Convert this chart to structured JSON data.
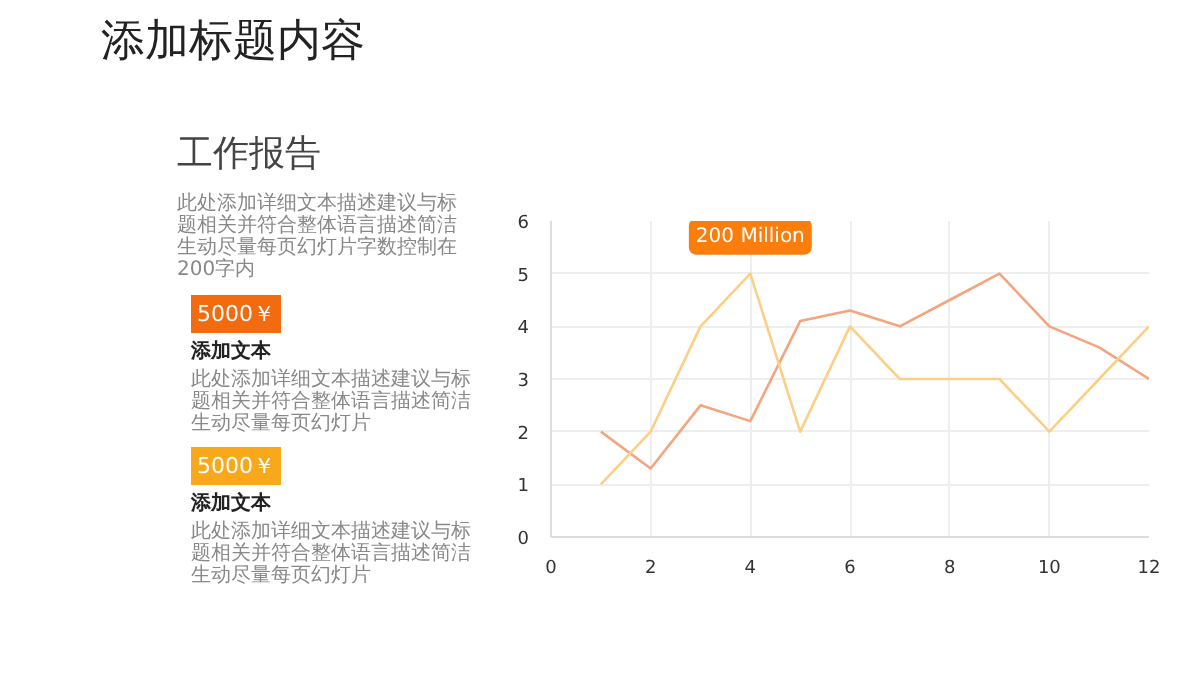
{
  "chart_data": {
    "type": "line",
    "title": "添加标题内容",
    "subtitle": "工作报告",
    "x": [
      1,
      2,
      3,
      4,
      5,
      6,
      7,
      8,
      9,
      10,
      11,
      12
    ],
    "series": [
      {
        "color": "#f2a57e",
        "values": [
          2,
          1.3,
          2.5,
          2.2,
          4.1,
          4.3,
          4,
          4.5,
          5,
          4,
          3.6,
          3
        ]
      },
      {
        "color": "#fdcf86",
        "values": [
          1,
          2,
          4,
          5,
          2,
          4,
          3,
          3,
          3,
          2,
          3,
          4
        ]
      }
    ],
    "xlim": [
      0,
      12
    ],
    "ylim": [
      0,
      6
    ],
    "xticks": [
      0,
      2,
      4,
      6,
      8,
      10,
      12
    ],
    "yticks": [
      0,
      1,
      2,
      3,
      4,
      5,
      6
    ],
    "grid": true,
    "marker": "none",
    "line_style": "solid",
    "annotations": [
      "此处添加详细文本描述建议与标题相关并符合整体语言描述简洁生动尽量每页幻灯片字数控制在200字内",
      "5000￥",
      "添加文本",
      "此处添加详细文本描述建议与标题相关并符合整体语言描述简洁生动尽量每页幻灯片",
      "5000￥",
      "添加文本",
      "此处添加详细文本描述建议与标题相关并符合整体语言描述简洁生动尽量每页幻灯片",
      {
        "text": "200 Million",
        "x": 4,
        "y": 5
      }
    ]
  }
}
